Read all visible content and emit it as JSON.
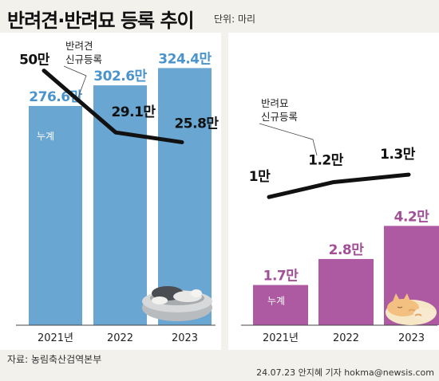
{
  "title": "반려견·반려묘 등록 추이",
  "unit_label": "단위: 마리",
  "source": "자료: 농림축산검역본부",
  "credit": "24.07.23 안지혜 기자 hokma@newsis.com",
  "colors": {
    "dog_bar": "#6aa6d2",
    "cat_bar": "#ae5aa2",
    "dog_value": "#4a93cb",
    "cat_value": "#a34f98",
    "line": "#111111",
    "background": "#f3f1ec"
  },
  "icons": [
    "sleeping-dog-in-bed-illustration",
    "sleeping-cat-illustration"
  ],
  "chart_data": [
    {
      "type": "bar",
      "categories": [
        "2021년",
        "2022",
        "2023"
      ],
      "series": [
        {
          "name": "누계",
          "values": [
            276.6,
            302.6,
            324.4
          ],
          "labels": [
            "276.6만",
            "302.6만",
            "324.4만"
          ]
        }
      ],
      "ylim": [
        0,
        360
      ],
      "overlay_line": {
        "name": "반려견 신규등록",
        "values": [
          50,
          29.1,
          25.8
        ],
        "labels": [
          "50만",
          "29.1만",
          "25.8만"
        ],
        "ylim": [
          20,
          55
        ]
      },
      "legend_labels": [
        "누계",
        "반려견\n신규등록"
      ]
    },
    {
      "type": "bar",
      "categories": [
        "2021년",
        "2022",
        "2023"
      ],
      "series": [
        {
          "name": "누계",
          "values": [
            1.7,
            2.8,
            4.2
          ],
          "labels": [
            "1.7만",
            "2.8만",
            "4.2만"
          ]
        }
      ],
      "ylim": [
        0,
        6
      ],
      "overlay_line": {
        "name": "반려묘 신규등록",
        "values": [
          1,
          1.2,
          1.3
        ],
        "labels": [
          "1만",
          "1.2만",
          "1.3만"
        ],
        "ylim": [
          0.8,
          1.45
        ]
      },
      "legend_labels": [
        "누계",
        "반려묘\n신규등록"
      ]
    }
  ]
}
